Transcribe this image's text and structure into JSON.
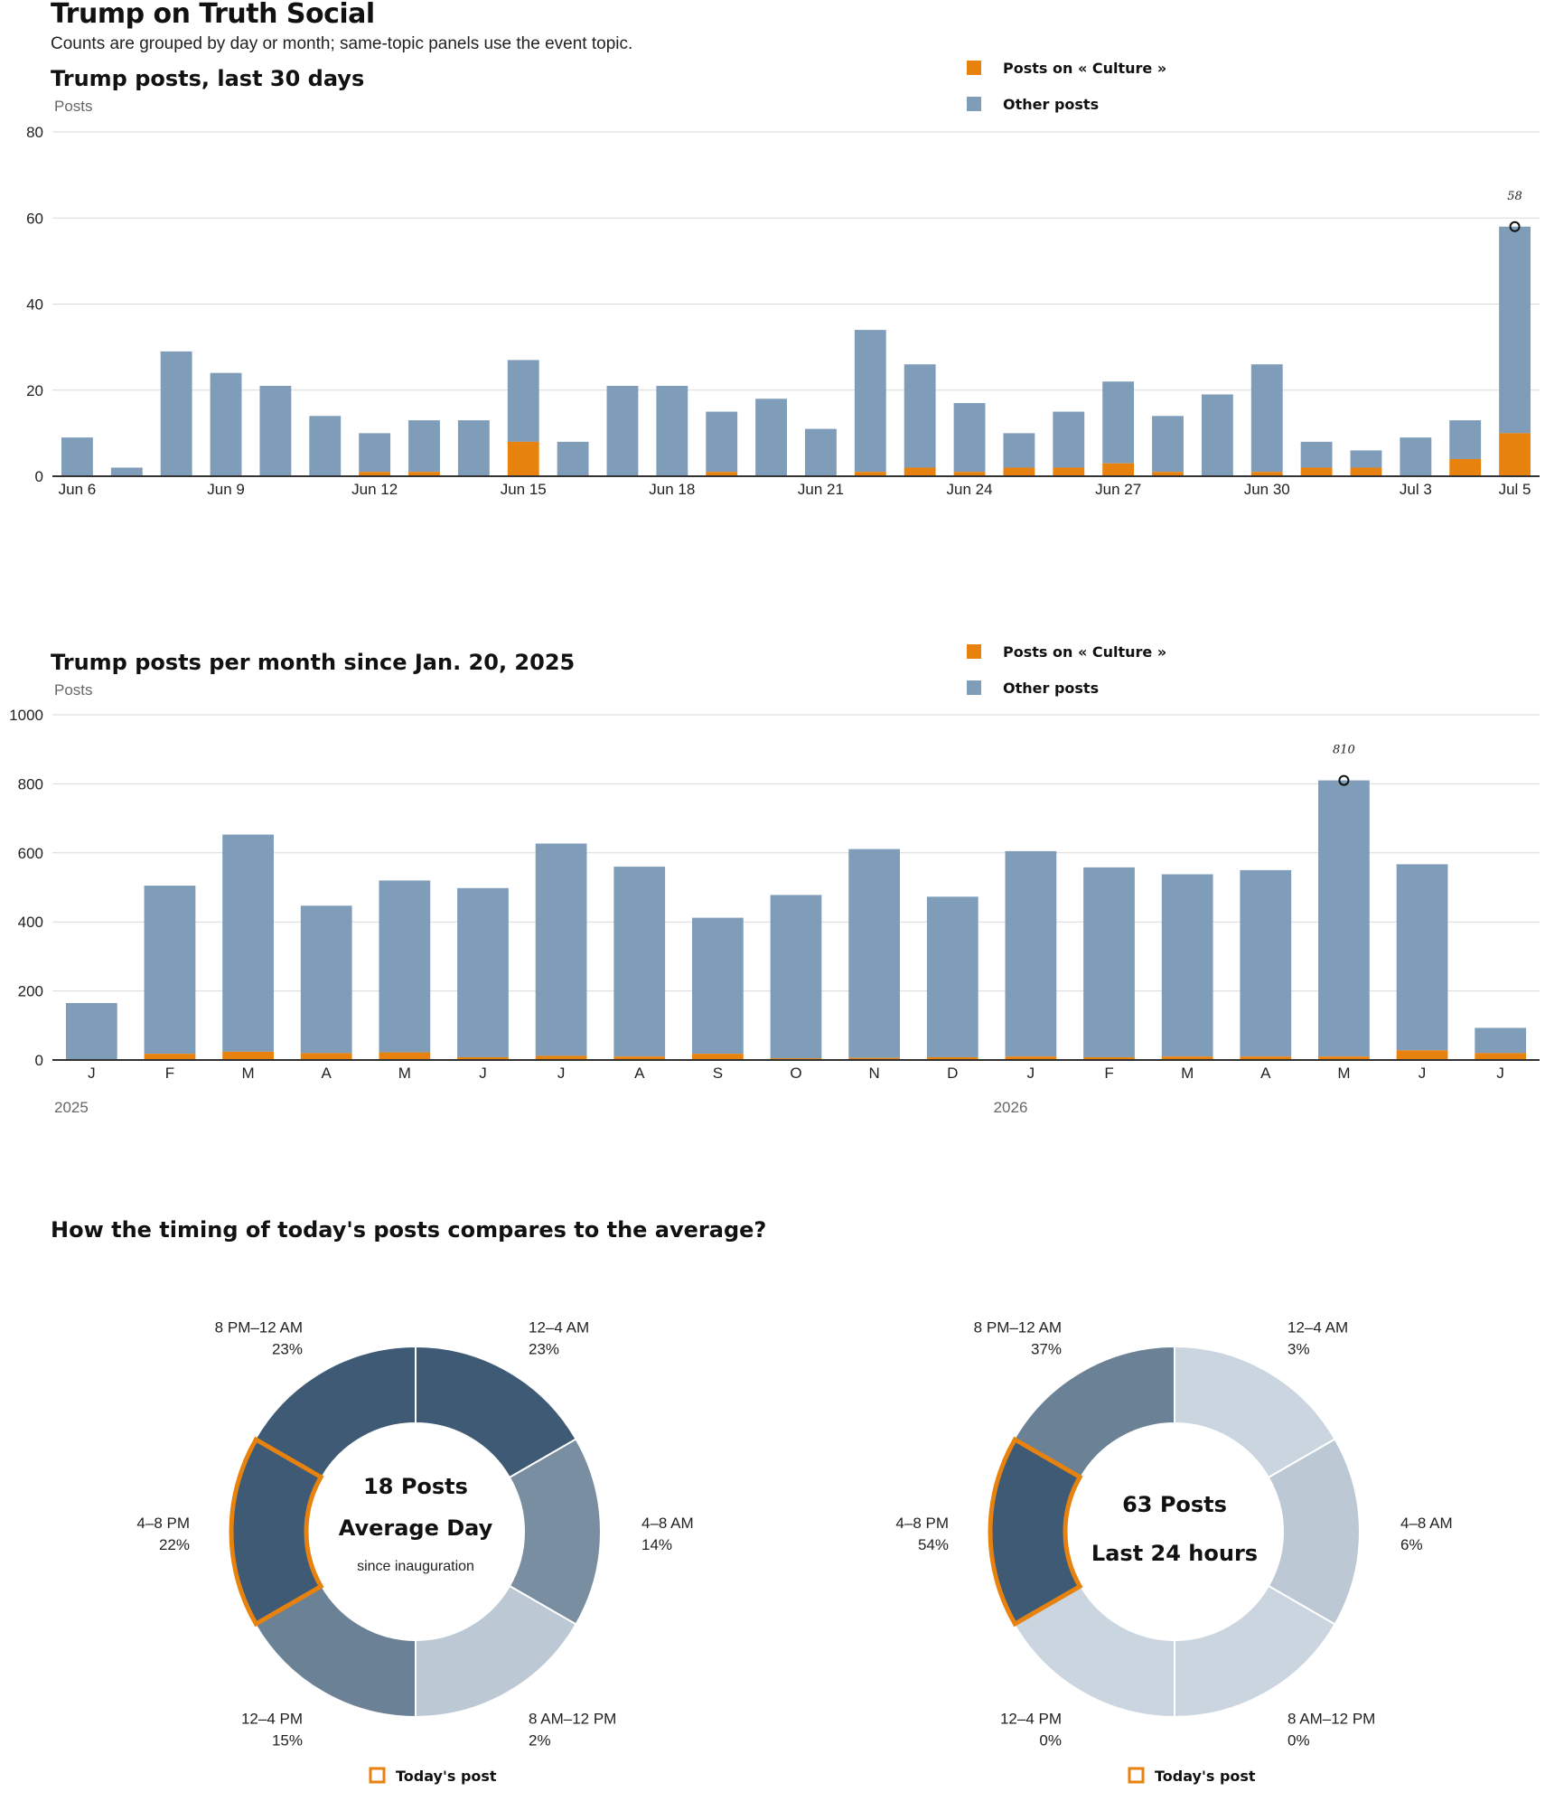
{
  "header": {
    "title": "Trump on Truth Social",
    "subtitle": "Counts are grouped by day or month; same-topic panels use the event topic."
  },
  "colors": {
    "topic": "#e8820e",
    "other": "#7f9cb8",
    "grid": "#d9d9d9",
    "axis": "#333333",
    "highlight": "#e8820e",
    "donut_shades": [
      "#3f5a75",
      "#6b8196",
      "#7a8ea2",
      "#bcc8d4",
      "#cbd5df"
    ]
  },
  "legend": {
    "topic": "Posts on « Culture »",
    "other": "Other posts",
    "todays_post": "Today's post"
  },
  "donut_section_title": "How the timing of today's posts compares to the average?",
  "chart_data": [
    {
      "type": "bar",
      "stacked": true,
      "title": "Trump posts, last 30 days",
      "ylabel": "Posts",
      "ylim": [
        0,
        80
      ],
      "yticks": [
        0,
        20,
        40,
        60,
        80
      ],
      "grid": true,
      "legend_position": "top-right",
      "categories": [
        "Jun 6",
        "Jun 7",
        "Jun 8",
        "Jun 9",
        "Jun 10",
        "Jun 11",
        "Jun 12",
        "Jun 13",
        "Jun 14",
        "Jun 15",
        "Jun 16",
        "Jun 17",
        "Jun 18",
        "Jun 19",
        "Jun 20",
        "Jun 21",
        "Jun 22",
        "Jun 23",
        "Jun 24",
        "Jun 25",
        "Jun 26",
        "Jun 27",
        "Jun 28",
        "Jun 29",
        "Jun 30",
        "Jul 1",
        "Jul 2",
        "Jul 3",
        "Jul 4",
        "Jul 5"
      ],
      "tick_labels": [
        "Jun 6",
        "",
        "",
        "Jun 9",
        "",
        "",
        "Jun 12",
        "",
        "",
        "Jun 15",
        "",
        "",
        "Jun 18",
        "",
        "",
        "Jun 21",
        "",
        "",
        "Jun 24",
        "",
        "",
        "Jun 27",
        "",
        "",
        "Jun 30",
        "",
        "",
        "Jul 3",
        "",
        "Jul 5"
      ],
      "series": [
        {
          "name": "Posts on « Culture »",
          "values": [
            0,
            0,
            0,
            0,
            0,
            0,
            1,
            1,
            0,
            8,
            0,
            0,
            0,
            1,
            0,
            0,
            1,
            2,
            1,
            2,
            2,
            3,
            1,
            0,
            1,
            2,
            2,
            0,
            4,
            10
          ]
        },
        {
          "name": "Other posts",
          "values": [
            9,
            2,
            29,
            24,
            21,
            14,
            9,
            12,
            13,
            19,
            8,
            21,
            21,
            14,
            18,
            11,
            33,
            24,
            16,
            8,
            13,
            19,
            13,
            19,
            25,
            6,
            4,
            9,
            9,
            48
          ]
        }
      ],
      "totals": [
        9,
        2,
        29,
        24,
        21,
        14,
        10,
        13,
        13,
        27,
        8,
        21,
        21,
        15,
        18,
        11,
        34,
        26,
        17,
        10,
        15,
        22,
        14,
        19,
        26,
        8,
        6,
        9,
        13,
        58
      ],
      "annotation": {
        "index": 29,
        "value": 58,
        "label": "58"
      }
    },
    {
      "type": "bar",
      "stacked": true,
      "title": "Trump posts per month since Jan. 20, 2025",
      "ylabel": "Posts",
      "ylim": [
        0,
        1000
      ],
      "yticks": [
        0,
        200,
        400,
        600,
        800,
        1000
      ],
      "grid": true,
      "legend_position": "top-right",
      "categories": [
        "J",
        "F",
        "M",
        "A",
        "M",
        "J",
        "J",
        "A",
        "S",
        "O",
        "N",
        "D",
        "J",
        "F",
        "M",
        "A",
        "M",
        "J",
        "J"
      ],
      "year_labels": [
        {
          "index": 0,
          "label": "2025"
        },
        {
          "index": 12,
          "label": "2026"
        }
      ],
      "series": [
        {
          "name": "Posts on « Culture »",
          "values": [
            2,
            18,
            24,
            20,
            22,
            8,
            12,
            10,
            18,
            5,
            6,
            8,
            10,
            8,
            10,
            10,
            10,
            28,
            20
          ]
        },
        {
          "name": "Other posts",
          "values": [
            163,
            487,
            629,
            427,
            498,
            490,
            615,
            550,
            394,
            473,
            605,
            465,
            595,
            550,
            528,
            540,
            800,
            539,
            73
          ]
        }
      ],
      "totals": [
        165,
        505,
        653,
        447,
        520,
        498,
        627,
        560,
        412,
        478,
        611,
        473,
        605,
        558,
        538,
        550,
        810,
        567,
        93
      ],
      "annotation": {
        "index": 16,
        "value": 810,
        "label": "810"
      }
    },
    {
      "type": "pie",
      "variant": "donut",
      "center_lines": [
        "18 Posts",
        "Average Day"
      ],
      "center_note": "since inauguration",
      "highlight_index": 4,
      "slices": [
        {
          "label": "12–4 AM",
          "pct": "23%",
          "shade": 0
        },
        {
          "label": "4–8 AM",
          "pct": "14%",
          "shade": 2
        },
        {
          "label": "8 AM–12 PM",
          "pct": "2%",
          "shade": 3
        },
        {
          "label": "12–4 PM",
          "pct": "15%",
          "shade": 1
        },
        {
          "label": "4–8 PM",
          "pct": "22%",
          "shade": 0
        },
        {
          "label": "8 PM–12 AM",
          "pct": "23%",
          "shade": 0
        }
      ]
    },
    {
      "type": "pie",
      "variant": "donut",
      "center_lines": [
        "63 Posts",
        "Last 24 hours"
      ],
      "center_note": "",
      "highlight_index": 4,
      "slices": [
        {
          "label": "12–4 AM",
          "pct": "3%",
          "shade": 4
        },
        {
          "label": "4–8 AM",
          "pct": "6%",
          "shade": 3
        },
        {
          "label": "8 AM–12 PM",
          "pct": "0%",
          "shade": 4
        },
        {
          "label": "12–4 PM",
          "pct": "0%",
          "shade": 4
        },
        {
          "label": "4–8 PM",
          "pct": "54%",
          "shade": 0
        },
        {
          "label": "8 PM–12 AM",
          "pct": "37%",
          "shade": 1
        }
      ]
    }
  ]
}
